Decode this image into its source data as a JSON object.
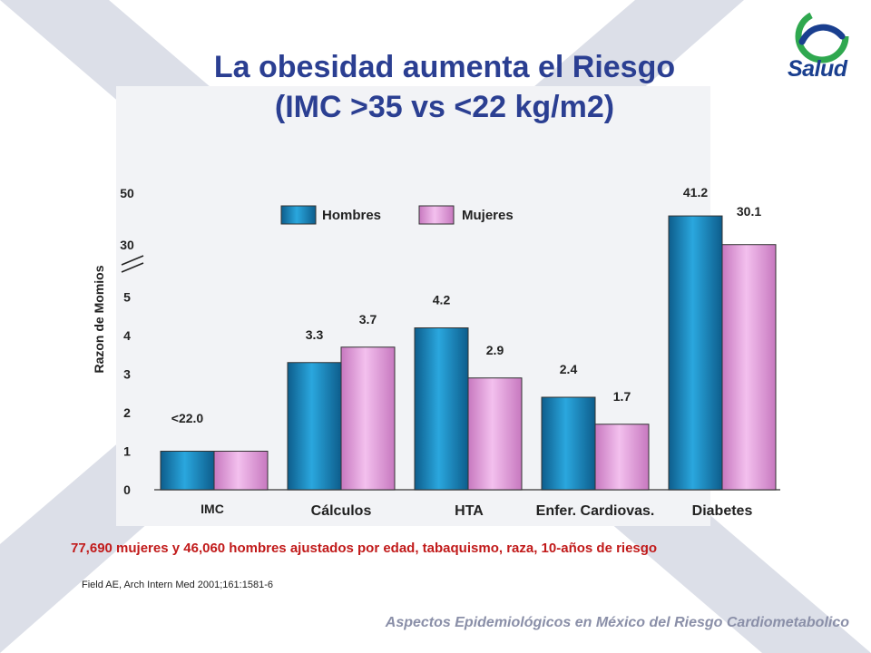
{
  "slide": {
    "title_line1": "La obesidad aumenta el Riesgo",
    "title_line2": "(IMC >35 vs <22 kg/m2)",
    "logo_text": "Salud",
    "note": "77,690 mujeres y  46,060 hombres ajustados por edad, tabaquismo, raza, 10-años de riesgo",
    "citation": "Field AE, Arch Intern  Med 2001;161:1581-6",
    "footer": "Aspectos Epidemiológicos en México del Riesgo Cardiometabolico"
  },
  "colors": {
    "title": "#2b3f92",
    "hombres": "#1d8fc4",
    "mujeres": "#e8a0e0",
    "note": "#c11a1a",
    "background_x": "#d8dbe6"
  },
  "icons": [
    "salud-logo-icon",
    "axis-break-icon"
  ],
  "chart_data": {
    "type": "bar",
    "categories": [
      "IMC",
      "Cálculos",
      "HTA",
      "Enfer. Cardiovas.",
      "Diabetes"
    ],
    "series": [
      {
        "name": "Hombres",
        "values": [
          1.0,
          3.3,
          4.2,
          2.4,
          41.2
        ],
        "value_labels": [
          "<22.0",
          "3.3",
          "4.2",
          "2.4",
          "41.2"
        ]
      },
      {
        "name": "Mujeres",
        "values": [
          1.0,
          3.7,
          2.9,
          1.7,
          30.1
        ],
        "value_labels": [
          "",
          "3.7",
          "2.9",
          "1.7",
          "30.1"
        ]
      }
    ],
    "ylabel": "Razon de Momios",
    "yticks": [
      "0",
      "1",
      "2",
      "3",
      "4",
      "5",
      "30",
      "50"
    ],
    "y_axis_break": "between 5 and 30",
    "legend_position": "top-center",
    "grid": false
  }
}
